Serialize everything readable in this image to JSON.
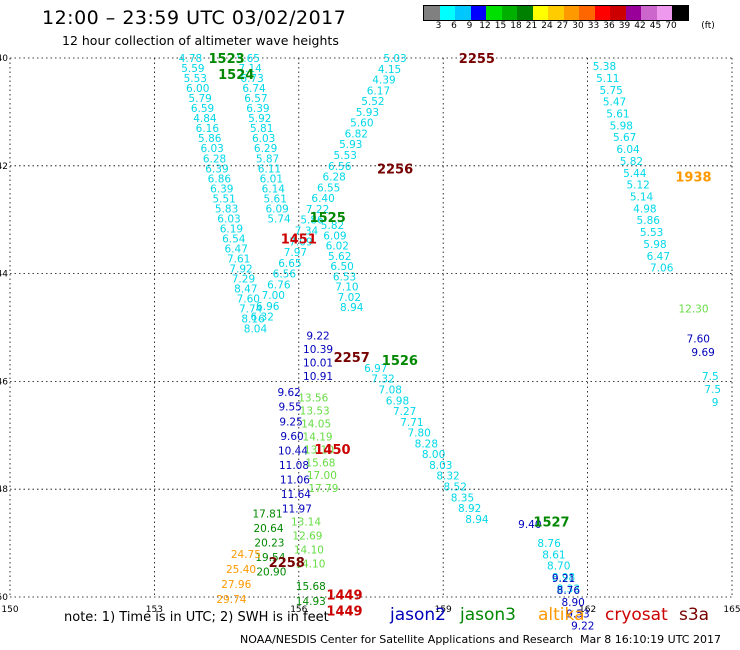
{
  "header": {
    "title": "12:00 – 23:59 UTC 03/02/2017",
    "subtitle": "12 hour collection of altimeter wave heights"
  },
  "colorbar": {
    "unit": "(ft)",
    "labels": [
      "3",
      "6",
      "9",
      "12",
      "15",
      "18",
      "21",
      "24",
      "27",
      "30",
      "33",
      "36",
      "39",
      "42",
      "45",
      "70"
    ],
    "colors": [
      "#808080",
      "#00ffff",
      "#00c8ff",
      "#0000ff",
      "#00e000",
      "#00b000",
      "#008000",
      "#ffff00",
      "#ffcc00",
      "#ff9900",
      "#ff6600",
      "#ff0000",
      "#cc0000",
      "#990099",
      "#cc66cc",
      "#ee99ee",
      "#000000"
    ]
  },
  "axes": {
    "x_ticks": [
      "150",
      "153",
      "156",
      "159",
      "162",
      "165"
    ],
    "y_ticks": [
      "40",
      "42",
      "44",
      "46",
      "48",
      "50"
    ]
  },
  "satellite_colors": {
    "jason2": "#0000bb",
    "jason3": "#008800",
    "altika": "#ff9900",
    "cryosat": "#cc0000",
    "s3a": "#770000",
    "cyan": "#00d8e8",
    "lime": "#66dd44"
  },
  "pass_labels": [
    {
      "text": "1523",
      "lon": 154.5,
      "lat": 40.0,
      "sat": "jason3"
    },
    {
      "text": "1524",
      "lon": 154.7,
      "lat": 40.3,
      "sat": "jason3"
    },
    {
      "text": "2255",
      "lon": 159.7,
      "lat": 40.0,
      "sat": "s3a"
    },
    {
      "text": "2256",
      "lon": 158.0,
      "lat": 42.05,
      "sat": "s3a"
    },
    {
      "text": "1938",
      "lon": 164.2,
      "lat": 42.2,
      "sat": "altika"
    },
    {
      "text": "1525",
      "lon": 156.6,
      "lat": 42.95,
      "sat": "jason3"
    },
    {
      "text": "1451",
      "lon": 156.0,
      "lat": 43.35,
      "sat": "cryosat"
    },
    {
      "text": "2257",
      "lon": 157.1,
      "lat": 45.55,
      "sat": "s3a"
    },
    {
      "text": "1526",
      "lon": 158.1,
      "lat": 45.6,
      "sat": "jason3"
    },
    {
      "text": "1450",
      "lon": 156.7,
      "lat": 47.25,
      "sat": "cryosat"
    },
    {
      "text": "1527",
      "lon": 161.25,
      "lat": 48.6,
      "sat": "jason3"
    },
    {
      "text": "2258",
      "lon": 155.75,
      "lat": 49.35,
      "sat": "s3a"
    },
    {
      "text": "1449",
      "lon": 156.95,
      "lat": 49.95,
      "sat": "cryosat"
    },
    {
      "text": "1449",
      "lon": 156.95,
      "lat": 50.25,
      "sat": "cryosat"
    }
  ],
  "tracks": [
    {
      "name": "jason3-cyan-a",
      "sat": "cyan",
      "start": [
        153.75,
        40.0
      ],
      "step": [
        0.05,
        0.186
      ],
      "values": [
        "4.78",
        "5.59",
        "5.53",
        "6.00",
        "5.79",
        "6.59",
        "4.84",
        "6.16",
        "5.86",
        "6.03",
        "6.28",
        "6.39",
        "6.86",
        "6.39",
        "5.51",
        "5.83",
        "6.03",
        "6.19",
        "6.54",
        "6.47",
        "7.61",
        "7.92",
        "7.29",
        "8.47",
        "7.60",
        "7.74",
        "8.16",
        "8.04"
      ]
    },
    {
      "name": "cyan-b",
      "sat": "cyan",
      "start": [
        154.95,
        40.0
      ],
      "step": [
        0.04,
        0.186
      ],
      "values": [
        "5.65",
        "7.14",
        "6.73",
        "6.74",
        "6.57",
        "6.39",
        "5.92",
        "5.81",
        "6.03",
        "6.29",
        "5.87",
        "6.11",
        "6.01",
        "6.14",
        "5.61",
        "6.09",
        "5.74"
      ]
    },
    {
      "name": "s3a-cyan",
      "sat": "cyan",
      "start": [
        158.0,
        40.0
      ],
      "step": [
        -0.115,
        0.2
      ],
      "values": [
        "5.03",
        "4.15",
        "4.39",
        "6.17",
        "5.52",
        "5.93",
        "5.60",
        "6.82",
        "5.93",
        "5.53",
        "6.56",
        "6.28",
        "6.55",
        "6.40",
        "7.22",
        "5.86",
        "7.34",
        "7.09",
        "7.97",
        "6.65",
        "6.56",
        "6.76",
        "7.00",
        "6.96",
        "6.32"
      ]
    },
    {
      "name": "jason3-1525-cyan",
      "sat": "cyan",
      "start": [
        156.7,
        43.1
      ],
      "step": [
        0.05,
        0.19
      ],
      "values": [
        "5.82",
        "6.09",
        "6.02",
        "5.62",
        "6.50",
        "6.53",
        "7.10",
        "7.02",
        "8.94"
      ]
    },
    {
      "name": "jason3-1526-cyan",
      "sat": "cyan",
      "start": [
        157.6,
        45.75
      ],
      "step": [
        0.15,
        0.2
      ],
      "values": [
        "6.97",
        "7.32",
        "7.08",
        "6.98",
        "7.27",
        "7.71",
        "7.80",
        "8.28",
        "8.00",
        "8.03",
        "8.32",
        "8.52",
        "8.35",
        "8.92",
        "8.94"
      ]
    },
    {
      "name": "jason3-1527-cyan",
      "sat": "cyan",
      "start": [
        161.2,
        49.0
      ],
      "step": [
        0.1,
        0.21
      ],
      "values": [
        "8.76",
        "8.61",
        "8.70",
        "8.98",
        "8.33"
      ]
    },
    {
      "name": "altika-cyan",
      "sat": "cyan",
      "start": [
        162.35,
        40.15
      ],
      "step": [
        0.07,
        0.22
      ],
      "values": [
        "5.38",
        "5.11",
        "5.75",
        "5.47",
        "5.61",
        "5.98",
        "5.67",
        "6.04",
        "5.82",
        "5.44",
        "5.12",
        "5.14",
        "4.98",
        "5.86",
        "5.53",
        "5.98",
        "6.47",
        "7.06"
      ]
    },
    {
      "name": "altika-extra",
      "sat": "cyan",
      "start": [
        164.55,
        45.9
      ],
      "step": [
        0.05,
        0.24
      ],
      "values": [
        "7.5",
        "7.5",
        "9"
      ]
    },
    {
      "name": "altika-lime",
      "sat": "lime",
      "start": [
        164.2,
        44.65
      ],
      "step": [
        0,
        0
      ],
      "values": [
        "12.30"
      ]
    },
    {
      "name": "altika-blue",
      "sat": "jason2",
      "start": [
        164.3,
        45.2
      ],
      "step": [
        0.1,
        0.25
      ],
      "values": [
        "7.60",
        "9.69"
      ]
    },
    {
      "name": "jason2-a",
      "sat": "jason2",
      "start": [
        156.4,
        45.15
      ],
      "step": [
        0.0,
        0.25
      ],
      "values": [
        "9.22",
        "10.39",
        "10.01",
        "10.91"
      ]
    },
    {
      "name": "jason2-b",
      "sat": "jason2",
      "start": [
        155.8,
        46.2
      ],
      "step": [
        0.02,
        0.27
      ],
      "values": [
        "9.62",
        "9.55",
        "9.25",
        "9.60",
        "10.44",
        "11.08",
        "11.06",
        "11.64",
        "11.97"
      ]
    },
    {
      "name": "jason2-c",
      "sat": "jason2",
      "start": [
        161.5,
        49.65
      ],
      "step": [
        0.1,
        0.22
      ],
      "values": [
        "9.21",
        "8.76",
        "8.90",
        "9.53",
        "9.22"
      ]
    },
    {
      "name": "jason2-d",
      "sat": "jason2",
      "start": [
        160.8,
        48.65
      ],
      "step": [
        0,
        0
      ],
      "values": [
        "9.40"
      ]
    },
    {
      "name": "lime-a",
      "sat": "lime",
      "start": [
        156.3,
        46.3
      ],
      "step": [
        0.03,
        0.24
      ],
      "values": [
        "13.56",
        "13.53",
        "14.05",
        "14.19",
        "13.10",
        "15.68",
        "17.00",
        "17.79"
      ]
    },
    {
      "name": "lime-b",
      "sat": "lime",
      "start": [
        156.15,
        48.6
      ],
      "step": [
        0.03,
        0.26
      ],
      "values": [
        "13.14",
        "12.69",
        "14.10",
        "14.10"
      ]
    },
    {
      "name": "jason3-green",
      "sat": "jason3",
      "start": [
        155.35,
        48.45
      ],
      "step": [
        0.02,
        0.27
      ],
      "values": [
        "17.81",
        "20.64",
        "20.23",
        "19.54",
        "20.90"
      ]
    },
    {
      "name": "jason3-green-b",
      "sat": "jason3",
      "start": [
        156.25,
        49.8
      ],
      "step": [
        0,
        0.27
      ],
      "values": [
        "15.68",
        "14.93"
      ]
    },
    {
      "name": "altika-orange",
      "sat": "altika",
      "start": [
        154.9,
        49.2
      ],
      "step": [
        -0.1,
        0.28
      ],
      "values": [
        "24.75",
        "25.40",
        "27.96",
        "29.74"
      ]
    }
  ],
  "note": {
    "text": "note:  1) Time is in UTC;  2) SWH is in feet"
  },
  "legend": [
    {
      "label": "jason2",
      "sat": "jason2"
    },
    {
      "label": "jason3",
      "sat": "jason3"
    },
    {
      "label": "altika",
      "sat": "altika"
    },
    {
      "label": "cryosat",
      "sat": "cryosat"
    },
    {
      "label": "s3a",
      "sat": "s3a"
    }
  ],
  "footer": {
    "credit": "NOAA/NESDIS Center for Satellite Applications and Research",
    "timestamp": "Mar  8 16:10:19 UTC 2017"
  }
}
